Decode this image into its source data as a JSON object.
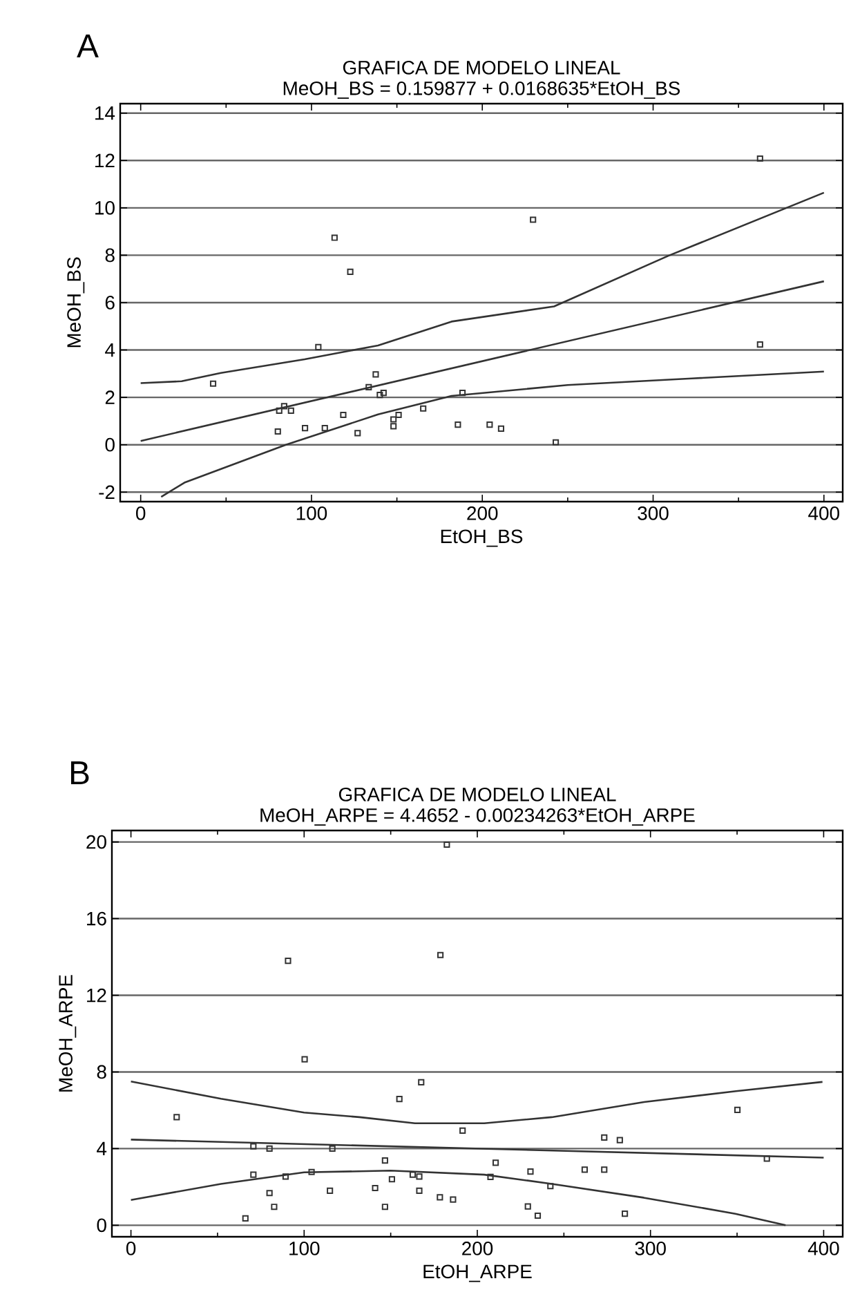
{
  "chart_data": [
    {
      "type": "scatter",
      "title": "GRAFICA DE MODELO LINEAL",
      "subtitle": "MeOH_BS = 0.159877 + 0.0168635*EtOH_BS",
      "xlabel": "EtOH_BS",
      "ylabel": "MeOH_BS",
      "annotations": [
        "A"
      ],
      "xlim": [
        -12,
        411
      ],
      "ylim": [
        -2.4,
        14.4
      ],
      "xticks": [
        0,
        100,
        200,
        300,
        400
      ],
      "yticks": [
        -2,
        0,
        2,
        4,
        6,
        8,
        10,
        12,
        14
      ],
      "grid": "y",
      "series": [
        {
          "marker": "square",
          "color": "#333333",
          "x": [
            42.4,
            80.3,
            81.1,
            84,
            88,
            96.2,
            104,
            107.8,
            113.5,
            118.6,
            122.7,
            127,
            133.5,
            137.6,
            140,
            142.2,
            148,
            148,
            151,
            165.4,
            185.7,
            188.4,
            204.3,
            211,
            229.7,
            243,
            362.6,
            362.6
          ],
          "values": [
            2.58,
            0.56,
            1.44,
            1.63,
            1.44,
            0.7,
            4.12,
            0.7,
            8.74,
            1.26,
            7.3,
            0.49,
            2.43,
            2.97,
            2.1,
            2.19,
            1.07,
            0.78,
            1.26,
            1.53,
            0.85,
            2.19,
            0.85,
            0.68,
            9.5,
            0.1,
            12.08,
            4.23
          ]
        },
        {
          "type": "line",
          "color": "#333333",
          "x": [
            0,
            24,
            47,
            96,
            139,
            182,
            242,
            309,
            400
          ],
          "values": [
            2.6,
            2.68,
            3.03,
            3.61,
            4.19,
            5.2,
            5.84,
            7.98,
            10.64
          ]
        },
        {
          "type": "line",
          "color": "#333333",
          "x": [
            0,
            400
          ],
          "values": [
            0.16,
            6.9
          ]
        },
        {
          "type": "line",
          "color": "#333333",
          "x": [
            12,
            25.6,
            85,
            139,
            182,
            250,
            322.6,
            400
          ],
          "values": [
            -2.2,
            -1.6,
            0,
            1.28,
            2.06,
            2.52,
            2.8,
            3.09
          ]
        }
      ]
    },
    {
      "type": "scatter",
      "title": "GRAFICA DE MODELO LINEAL",
      "subtitle": "MeOH_ARPE = 4.4652 - 0.00234263*EtOH_ARPE",
      "xlabel": "EtOH_ARPE",
      "ylabel": "MeOH_ARPE",
      "annotations": [
        "B"
      ],
      "xlim": [
        -11,
        411
      ],
      "ylim": [
        -0.6,
        20.6
      ],
      "xticks": [
        0,
        100,
        200,
        300,
        400
      ],
      "yticks": [
        0,
        4,
        8,
        12,
        16,
        20
      ],
      "grid": "y",
      "series": [
        {
          "marker": "square",
          "color": "#333333",
          "x": [
            26.4,
            66.1,
            70.7,
            70.7,
            80,
            80,
            82.7,
            90.7,
            89.3,
            100.3,
            104.3,
            114.9,
            116.3,
            141,
            146.7,
            146.7,
            150.7,
            155,
            162.7,
            166.5,
            166.5,
            167.6,
            178.7,
            178.4,
            182.4,
            186,
            191.5,
            207.6,
            210.6,
            229.2,
            230.7,
            234.9,
            242.2,
            262,
            273.3,
            273.3,
            282.3,
            285.2,
            350.2,
            367.2
          ],
          "values": [
            5.64,
            0.36,
            2.64,
            4.12,
            4.0,
            1.68,
            0.96,
            13.8,
            2.54,
            8.66,
            2.78,
            1.8,
            4.0,
            1.94,
            3.38,
            0.96,
            2.4,
            6.59,
            2.64,
            2.54,
            1.8,
            7.46,
            14.1,
            1.46,
            19.86,
            1.34,
            4.94,
            2.52,
            3.26,
            0.98,
            2.8,
            0.5,
            2.04,
            2.9,
            2.9,
            4.58,
            4.44,
            0.6,
            6.02,
            3.48
          ]
        },
        {
          "type": "line",
          "color": "#333333",
          "x": [
            0,
            52,
            100,
            132,
            164,
            204,
            243,
            296.3,
            349.4,
            399.3
          ],
          "values": [
            7.5,
            6.6,
            5.88,
            5.64,
            5.32,
            5.32,
            5.64,
            6.43,
            7.0,
            7.48
          ]
        },
        {
          "type": "line",
          "color": "#333333",
          "x": [
            0,
            400
          ],
          "values": [
            4.47,
            3.53
          ]
        },
        {
          "type": "line",
          "color": "#333333",
          "x": [
            0,
            52,
            100,
            150,
            204,
            243,
            296,
            349,
            378
          ],
          "values": [
            1.32,
            2.16,
            2.76,
            2.85,
            2.64,
            2.16,
            1.44,
            0.6,
            0
          ]
        }
      ]
    }
  ]
}
